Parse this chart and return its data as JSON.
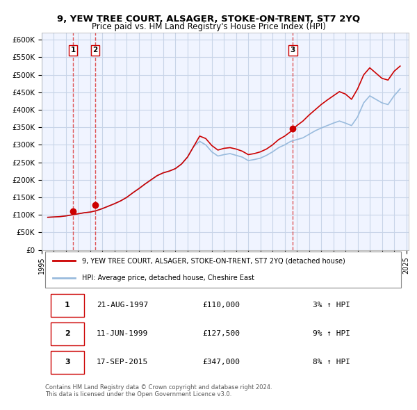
{
  "title": "9, YEW TREE COURT, ALSAGER, STOKE-ON-TRENT, ST7 2YQ",
  "subtitle": "Price paid vs. HM Land Registry's House Price Index (HPI)",
  "xlabel": "",
  "ylabel": "",
  "ylim": [
    0,
    620000
  ],
  "yticks": [
    0,
    50000,
    100000,
    150000,
    200000,
    250000,
    300000,
    350000,
    400000,
    450000,
    500000,
    550000,
    600000
  ],
  "ytick_labels": [
    "£0",
    "£50K",
    "£100K",
    "£150K",
    "£200K",
    "£250K",
    "£300K",
    "£350K",
    "£400K",
    "£450K",
    "£500K",
    "£550K",
    "£600K"
  ],
  "x_start_year": 1995,
  "x_end_year": 2025,
  "bg_color": "#f0f4ff",
  "plot_bg_color": "#f0f4ff",
  "grid_color": "#c8d4e8",
  "sale_color": "#cc0000",
  "hpi_color": "#99bbdd",
  "sale_marker_color": "#cc0000",
  "vline_color": "#dd4444",
  "legend_label_sale": "9, YEW TREE COURT, ALSAGER, STOKE-ON-TRENT, ST7 2YQ (detached house)",
  "legend_label_hpi": "HPI: Average price, detached house, Cheshire East",
  "sales": [
    {
      "label": "1",
      "date": "1997-08-21",
      "price": 110000,
      "pct": "3%",
      "dir": "↑"
    },
    {
      "label": "2",
      "date": "1999-06-11",
      "price": 127500,
      "pct": "9%",
      "dir": "↑"
    },
    {
      "label": "3",
      "date": "2015-09-17",
      "price": 347000,
      "pct": "8%",
      "dir": "↑"
    }
  ],
  "table_rows": [
    {
      "num": "1",
      "date": "21-AUG-1997",
      "price": "£110,000",
      "change": "3% ↑ HPI"
    },
    {
      "num": "2",
      "date": "11-JUN-1999",
      "price": "£127,500",
      "change": "9% ↑ HPI"
    },
    {
      "num": "3",
      "date": "17-SEP-2015",
      "price": "£347,000",
      "change": "8% ↑ HPI"
    }
  ],
  "footer": "Contains HM Land Registry data © Crown copyright and database right 2024.\nThis data is licensed under the Open Government Licence v3.0.",
  "hpi_data_years": [
    1995.5,
    1996,
    1996.5,
    1997,
    1997.5,
    1998,
    1998.5,
    1999,
    1999.5,
    2000,
    2000.5,
    2001,
    2001.5,
    2002,
    2002.5,
    2003,
    2003.5,
    2004,
    2004.5,
    2005,
    2005.5,
    2006,
    2006.5,
    2007,
    2007.5,
    2008,
    2008.5,
    2009,
    2009.5,
    2010,
    2010.5,
    2011,
    2011.5,
    2012,
    2012.5,
    2013,
    2013.5,
    2014,
    2014.5,
    2015,
    2015.5,
    2016,
    2016.5,
    2017,
    2017.5,
    2018,
    2018.5,
    2019,
    2019.5,
    2020,
    2020.5,
    2021,
    2021.5,
    2022,
    2022.5,
    2023,
    2023.5,
    2024,
    2024.5
  ],
  "hpi_values": [
    93000,
    94000,
    95000,
    97000,
    100000,
    103000,
    106000,
    108000,
    112000,
    118000,
    125000,
    132000,
    140000,
    150000,
    163000,
    175000,
    188000,
    200000,
    212000,
    220000,
    225000,
    232000,
    245000,
    265000,
    295000,
    310000,
    300000,
    280000,
    268000,
    272000,
    275000,
    270000,
    265000,
    255000,
    258000,
    262000,
    270000,
    280000,
    292000,
    300000,
    310000,
    315000,
    320000,
    330000,
    340000,
    348000,
    355000,
    362000,
    368000,
    362000,
    355000,
    380000,
    420000,
    440000,
    430000,
    420000,
    415000,
    440000,
    460000
  ],
  "sale_hpi_values": [
    93000,
    94000,
    95000,
    97000,
    100000,
    103000,
    106000,
    108000,
    112000,
    118000,
    125000,
    132000,
    140000,
    150000,
    163000,
    175000,
    188000,
    200000,
    212000,
    220000,
    225000,
    232000,
    245000,
    265000,
    295000,
    325000,
    318000,
    298000,
    285000,
    290000,
    292000,
    288000,
    282000,
    272000,
    275000,
    280000,
    288000,
    300000,
    315000,
    325000,
    338000,
    355000,
    368000,
    385000,
    400000,
    415000,
    428000,
    440000,
    452000,
    445000,
    430000,
    460000,
    500000,
    520000,
    505000,
    490000,
    485000,
    510000,
    525000
  ]
}
